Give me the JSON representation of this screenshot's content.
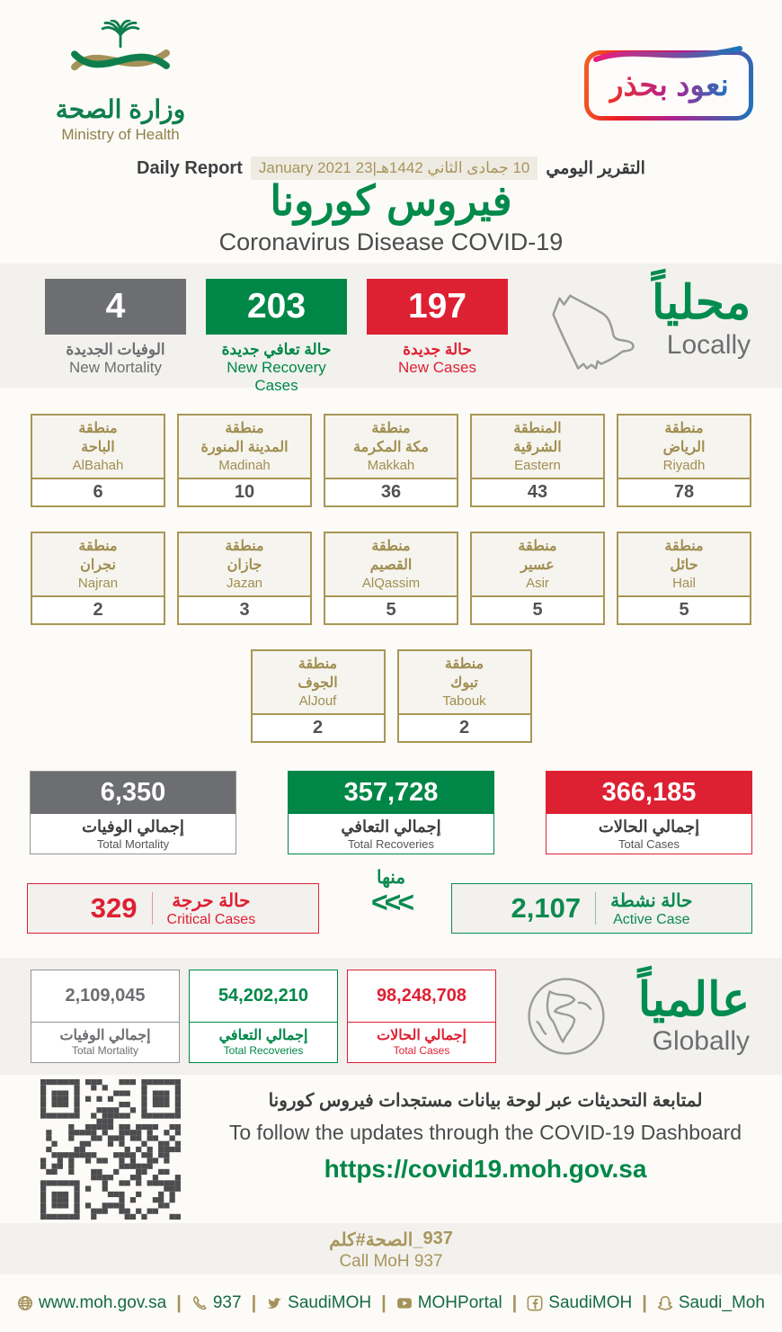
{
  "colors": {
    "green": "#008747",
    "red": "#DE2033",
    "gray": "#6D6E71",
    "gold": "#A89755",
    "dark": "#3F3F42"
  },
  "header": {
    "brand_ar": "وزارة الصحة",
    "brand_en": "Ministry of Health",
    "badge": "نعود بحذر",
    "report_en": "Daily Report",
    "report_date": "10 جمادى الثاني 1442هـ|23 January 2021",
    "report_ar": "التقرير اليومي",
    "title_ar": "فيروس كورونا",
    "title_en": "Coronavirus Disease COVID-19"
  },
  "locally": {
    "heading_ar": "محلياً",
    "heading_en": "Locally",
    "mortality": {
      "value": "4",
      "ar": "الوفيات الجديدة",
      "en": "New Mortality"
    },
    "recovery": {
      "value": "203",
      "ar": "حالة تعافي جديدة",
      "en": "New Recovery Cases"
    },
    "cases": {
      "value": "197",
      "ar": "حالة جديدة",
      "en": "New Cases"
    }
  },
  "regions": {
    "row1": [
      {
        "ar1": "منطقة",
        "ar2": "الباحة",
        "en": "AlBahah",
        "value": "6"
      },
      {
        "ar1": "منطقة",
        "ar2": "المدينة المنورة",
        "en": "Madinah",
        "value": "10"
      },
      {
        "ar1": "منطقة",
        "ar2": "مكة المكرمة",
        "en": "Makkah",
        "value": "36"
      },
      {
        "ar1": "المنطقة",
        "ar2": "الشرقية",
        "en": "Eastern",
        "value": "43"
      },
      {
        "ar1": "منطقة",
        "ar2": "الرياض",
        "en": "Riyadh",
        "value": "78"
      }
    ],
    "row2": [
      {
        "ar1": "منطقة",
        "ar2": "نجران",
        "en": "Najran",
        "value": "2"
      },
      {
        "ar1": "منطقة",
        "ar2": "جازان",
        "en": "Jazan",
        "value": "3"
      },
      {
        "ar1": "منطقة",
        "ar2": "القصيم",
        "en": "AlQassim",
        "value": "5"
      },
      {
        "ar1": "منطقة",
        "ar2": "عسير",
        "en": "Asir",
        "value": "5"
      },
      {
        "ar1": "منطقة",
        "ar2": "حائل",
        "en": "Hail",
        "value": "5"
      }
    ],
    "row3": [
      {
        "ar1": "منطقة",
        "ar2": "الجوف",
        "en": "AlJouf",
        "value": "2"
      },
      {
        "ar1": "منطقة",
        "ar2": "تبوك",
        "en": "Tabouk",
        "value": "2"
      }
    ]
  },
  "totals": [
    {
      "value": "6,350",
      "ar": "إجمالي الوفيات",
      "en": "Total Mortality"
    },
    {
      "value": "357,728",
      "ar": "إجمالي التعافي",
      "en": "Total Recoveries"
    },
    {
      "value": "366,185",
      "ar": "إجمالي الحالات",
      "en": "Total Cases"
    }
  ],
  "flow": {
    "critical": {
      "value": "329",
      "ar": "حالة حرجة",
      "en": "Critical Cases"
    },
    "from_ar": "منها",
    "arrows": "<<<",
    "active": {
      "value": "2,107",
      "ar": "حالة نشطة",
      "en": "Active Case"
    }
  },
  "globally": {
    "heading_ar": "عالمياً",
    "heading_en": "Globally",
    "mortality": {
      "value": "2,109,045",
      "ar": "إجمالي الوفيات",
      "en": "Total Mortality"
    },
    "recoveries": {
      "value": "54,202,210",
      "ar": "إجمالي التعافي",
      "en": "Total Recoveries"
    },
    "cases": {
      "value": "98,248,708",
      "ar": "إجمالي الحالات",
      "en": "Total Cases"
    }
  },
  "dashboard": {
    "ar": "لمتابعة التحديثات عبر لوحة بيانات مستجدات فيروس كورونا",
    "en": "To follow the updates through the COVID-19 Dashboard",
    "url": "https://covid19.moh.gov.sa"
  },
  "call": {
    "ar_word": "كلم",
    "ar_tag": "#الصحة_",
    "ar_num": "937",
    "en": "Call MoH 937"
  },
  "footer": [
    {
      "icon": "globe-icon",
      "label": "www.moh.gov.sa"
    },
    {
      "icon": "phone-icon",
      "label": "937"
    },
    {
      "icon": "twitter-icon",
      "label": "SaudiMOH"
    },
    {
      "icon": "youtube-icon",
      "label": "MOHPortal"
    },
    {
      "icon": "facebook-icon",
      "label": "SaudiMOH"
    },
    {
      "icon": "snapchat-icon",
      "label": "Saudi_Moh"
    }
  ]
}
